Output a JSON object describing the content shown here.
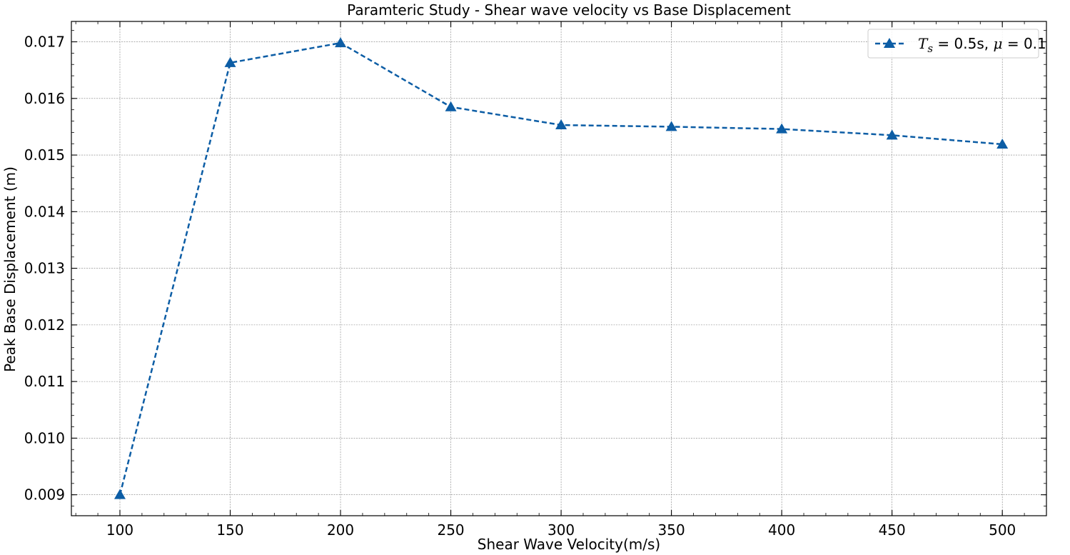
{
  "chart_data": {
    "type": "line",
    "title": "Paramteric Study - Shear wave velocity vs Base Displacement",
    "xlabel": "Shear Wave Velocity(m/s)",
    "ylabel": "Peak Base Displacement (m)",
    "xlim": [
      78,
      520
    ],
    "ylim": [
      0.00863,
      0.01736
    ],
    "x_ticks": [
      100,
      150,
      200,
      250,
      300,
      350,
      400,
      450,
      500
    ],
    "y_ticks": [
      0.009,
      0.01,
      0.011,
      0.012,
      0.013,
      0.014,
      0.015,
      0.016,
      0.017
    ],
    "x_tick_labels": [
      "100",
      "150",
      "200",
      "250",
      "300",
      "350",
      "400",
      "450",
      "500"
    ],
    "y_tick_labels": [
      "0.009",
      "0.010",
      "0.011",
      "0.012",
      "0.013",
      "0.014",
      "0.015",
      "0.016",
      "0.017"
    ],
    "grid": true,
    "legend_position": "top-right",
    "series": [
      {
        "name": "T_s = 0.5s, μ = 0.1",
        "legend_parts": [
          "T",
          "s",
          " = 0.5s, ",
          "μ",
          " = 0.1"
        ],
        "color": "#0c5da5",
        "line_style": "dashed",
        "marker": "triangle-up",
        "x": [
          100,
          150,
          200,
          250,
          300,
          350,
          400,
          450,
          500
        ],
        "y": [
          0.009,
          0.01663,
          0.01698,
          0.01585,
          0.01553,
          0.0155,
          0.01546,
          0.01535,
          0.01519
        ]
      }
    ]
  }
}
